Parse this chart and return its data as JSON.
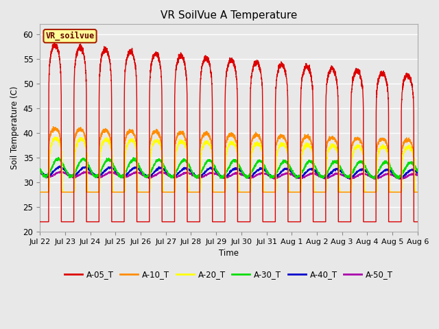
{
  "title": "VR SoilVue A Temperature",
  "ylabel": "Soil Temperature (C)",
  "xlabel": "Time",
  "ylim": [
    20,
    62
  ],
  "yticks": [
    20,
    25,
    30,
    35,
    40,
    45,
    50,
    55,
    60
  ],
  "plot_bg_color": "#e8e8e8",
  "fig_bg_color": "#e8e8e8",
  "legend_label": "VR_soilvue",
  "series_colors": {
    "A-05_T": "#dd0000",
    "A-10_T": "#ff8c00",
    "A-20_T": "#ffff00",
    "A-30_T": "#00dd00",
    "A-40_T": "#0000cc",
    "A-50_T": "#aa00aa"
  },
  "x_tick_labels": [
    "Jul 22",
    "Jul 23",
    "Jul 24",
    "Jul 25",
    "Jul 26",
    "Jul 27",
    "Jul 28",
    "Jul 29",
    "Jul 30",
    "Jul 31",
    "Aug 1",
    "Aug 2",
    "Aug 3",
    "Aug 4",
    "Aug 5",
    "Aug 6"
  ],
  "num_days": 15,
  "samples_per_day": 288
}
